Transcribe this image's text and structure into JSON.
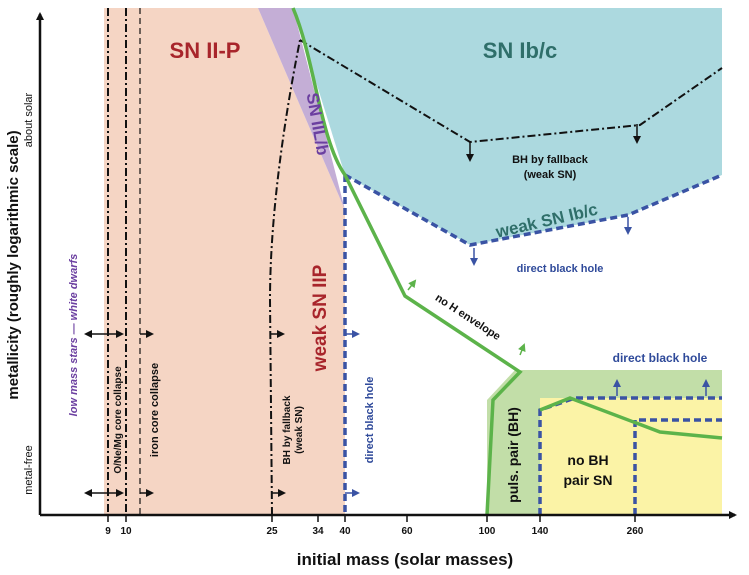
{
  "axes": {
    "xlabel": "initial mass (solar masses)",
    "ylabel": "metallicity (roughly logarithmic scale)",
    "y_top": "about solar",
    "y_bottom": "metal-free",
    "x_ticks": [
      "9",
      "10",
      "25",
      "34",
      "40",
      "60",
      "100",
      "140",
      "260"
    ]
  },
  "regions": {
    "sn2p": "SN II-P",
    "sn2lb": "SN IIL/b",
    "snibc": "SN Ib/c",
    "weak_sn2p": "weak SN IIP",
    "weak_snibc": "weak SN Ib/c",
    "puls_pair": "puls. pair (BH)",
    "no_bh_line1": "no BH",
    "no_bh_line2": "pair SN"
  },
  "labels": {
    "low_mass": "low mass stars — white dwarfs",
    "onemg": "O/Ne/Mg core collapse",
    "iron": "iron core collapse",
    "bh_fallback_v1": "BH by fallback",
    "bh_fallback_v2": "(weak SN)",
    "direct_bh_vertical": "direct black hole",
    "bh_fallback_top1": "BH by fallback",
    "bh_fallback_top2": "(weak SN)",
    "direct_bh_mid": "direct black hole",
    "no_h_env": "no H envelope",
    "direct_bh_low": "direct black hole"
  },
  "colors": {
    "sn2p": "#f5d5c4",
    "sn2lb": "#c4aed6",
    "snibc": "#acd9df",
    "puls_pair": "#c2dea8",
    "no_bh_pair": "#fbf3a6",
    "green_line": "#5cb34a",
    "blue_dashed": "#3a53a4",
    "red_text": "#a8252b",
    "teal_text": "#2f6f6a",
    "purple_text": "#6b3fa0",
    "navy_text": "#2f4a9a"
  }
}
